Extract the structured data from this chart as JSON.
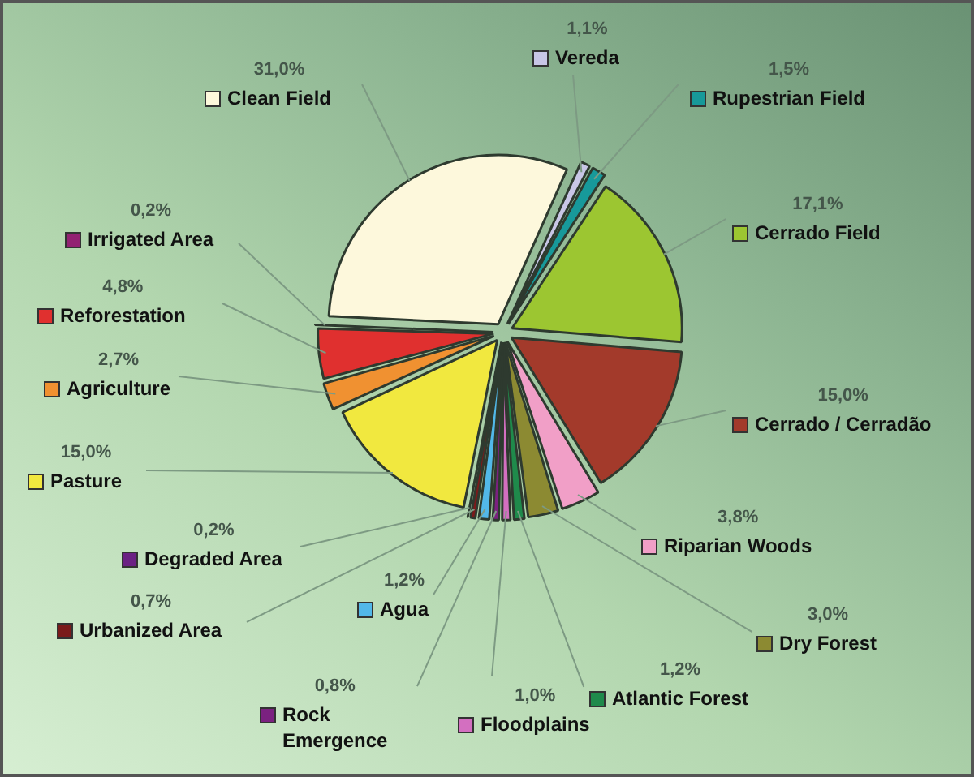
{
  "chart_data": {
    "type": "pie",
    "categories": [
      "Vereda",
      "Rupestrian Field",
      "Cerrado Field",
      "Cerrado / Cerradão",
      "Riparian Woods",
      "Dry Forest",
      "Atlantic Forest",
      "Floodplains",
      "Rock Emergence",
      "Agua",
      "Urbanized Area",
      "Degraded Area",
      "Pasture",
      "Agriculture",
      "Reforestation",
      "Irrigated Area",
      "Clean Field"
    ],
    "values": [
      1.1,
      1.5,
      17.1,
      15.0,
      3.8,
      3.0,
      1.2,
      1.0,
      0.8,
      1.2,
      0.7,
      0.2,
      15.0,
      2.7,
      4.8,
      0.2,
      31.0
    ],
    "value_labels": [
      "1,1%",
      "1,5%",
      "17,1%",
      "15,0%",
      "3,8%",
      "3,0%",
      "1,2%",
      "1,0%",
      "0,8%",
      "1,2%",
      "0,7%",
      "0,2%",
      "15,0%",
      "2,7%",
      "4,8%",
      "0,2%",
      "31,0%"
    ],
    "colors": [
      "#c8c6e6",
      "#17999a",
      "#9cc631",
      "#a33a2b",
      "#f19fc7",
      "#8c8a32",
      "#1f8a4b",
      "#d36fc0",
      "#7b2180",
      "#52b8e9",
      "#7a1b1b",
      "#6b2183",
      "#f1e83f",
      "#f09131",
      "#e0302f",
      "#922272",
      "#fdf8dc"
    ],
    "legend": "bottom left"
  }
}
